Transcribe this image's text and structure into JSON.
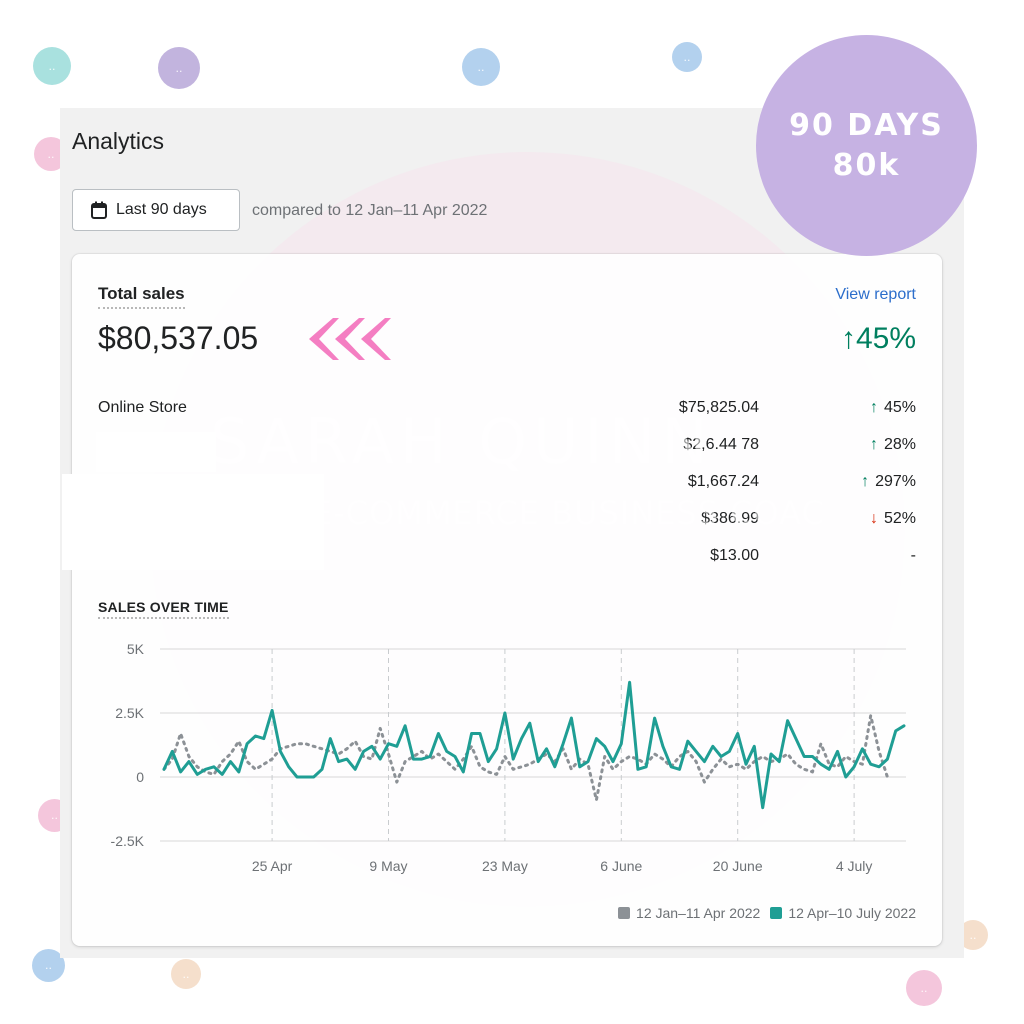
{
  "analytics": {
    "title": "Analytics",
    "date_range_button": "Last 90 days",
    "calendar_icon": "calendar-icon",
    "compare_text": "compared to 12 Jan–11 Apr 2022"
  },
  "badge": {
    "line1": "90 DAYS",
    "line2": "80k",
    "color": "#c6b2e3"
  },
  "watermark": {
    "line1": "SARAH QUINN",
    "line2": "E-COMMERCE BUSINESS COAC"
  },
  "total_sales": {
    "label": "Total sales",
    "value": "$80,537.05",
    "view_report": "View report",
    "change": "45%",
    "change_direction": "up",
    "pointer_icon": "triple-chevron-left-icon"
  },
  "channels": [
    {
      "name": "Online Store",
      "amount": "$75,825.04",
      "change": "45%",
      "direction": "up"
    },
    {
      "name": "",
      "amount": "$2,6.44 78",
      "change": "28%",
      "direction": "up"
    },
    {
      "name": "",
      "amount": "$1,667.24",
      "change": "297%",
      "direction": "up"
    },
    {
      "name": "",
      "amount": "$386.99",
      "change": "52%",
      "direction": "down"
    },
    {
      "name": "",
      "amount": "$13.00",
      "change": "-",
      "direction": "none"
    }
  ],
  "colors": {
    "positive": "#007f5f",
    "negative": "#d72c0d",
    "link": "#2c6ecb",
    "current_series": "#1f9e94",
    "previous_series": "#8c9196"
  },
  "chart_data": {
    "type": "line",
    "title": "SALES OVER TIME",
    "y_ticks": [
      "5K",
      "2.5K",
      "0",
      "-2.5K"
    ],
    "ylim": [
      -2500,
      5000
    ],
    "x_ticks": [
      "25 Apr",
      "9 May",
      "23 May",
      "6 June",
      "20 June",
      "4 July"
    ],
    "x_tick_index": [
      13,
      27,
      41,
      55,
      69,
      83
    ],
    "grid": true,
    "legend_position": "bottom-right",
    "series": [
      {
        "name": "12 Jan–11 Apr 2022",
        "color": "#8c9196",
        "style": "dotted",
        "values": [
          300,
          700,
          1700,
          800,
          400,
          200,
          100,
          600,
          900,
          1400,
          600,
          300,
          500,
          700,
          1100,
          1200,
          1300,
          1300,
          1200,
          1100,
          1000,
          900,
          1100,
          1400,
          800,
          700,
          1900,
          900,
          -200,
          600,
          800,
          1000,
          700,
          900,
          600,
          300,
          700,
          1200,
          400,
          200,
          100,
          800,
          300,
          400,
          500,
          700,
          900,
          600,
          1100,
          300,
          700,
          500,
          -900,
          800,
          300,
          600,
          800,
          700,
          500,
          900,
          700,
          400,
          800,
          1000,
          600,
          -200,
          300,
          700,
          400,
          500,
          300,
          600,
          800,
          600,
          700,
          900,
          500,
          300,
          200,
          1300,
          500,
          400,
          800,
          600,
          500,
          2400,
          1000,
          0
        ]
      },
      {
        "name": "12 Apr–10 July 2022",
        "color": "#1f9e94",
        "style": "solid",
        "values": [
          300,
          1000,
          200,
          600,
          100,
          300,
          400,
          100,
          600,
          200,
          1300,
          1600,
          1500,
          2600,
          1000,
          400,
          0,
          0,
          0,
          300,
          1500,
          600,
          700,
          300,
          1000,
          1200,
          700,
          1300,
          1200,
          2000,
          700,
          700,
          800,
          1700,
          1000,
          800,
          200,
          1700,
          1700,
          600,
          1100,
          2500,
          700,
          1500,
          2100,
          600,
          1100,
          400,
          1300,
          2300,
          400,
          600,
          1500,
          1200,
          600,
          1300,
          3700,
          300,
          400,
          2300,
          1200,
          400,
          300,
          1400,
          1000,
          600,
          1200,
          800,
          1000,
          1700,
          500,
          1200,
          -1200,
          900,
          600,
          2200,
          1500,
          800,
          800,
          500,
          300,
          1000,
          0,
          400,
          1100,
          500,
          400,
          700,
          1800,
          2000
        ]
      }
    ]
  }
}
